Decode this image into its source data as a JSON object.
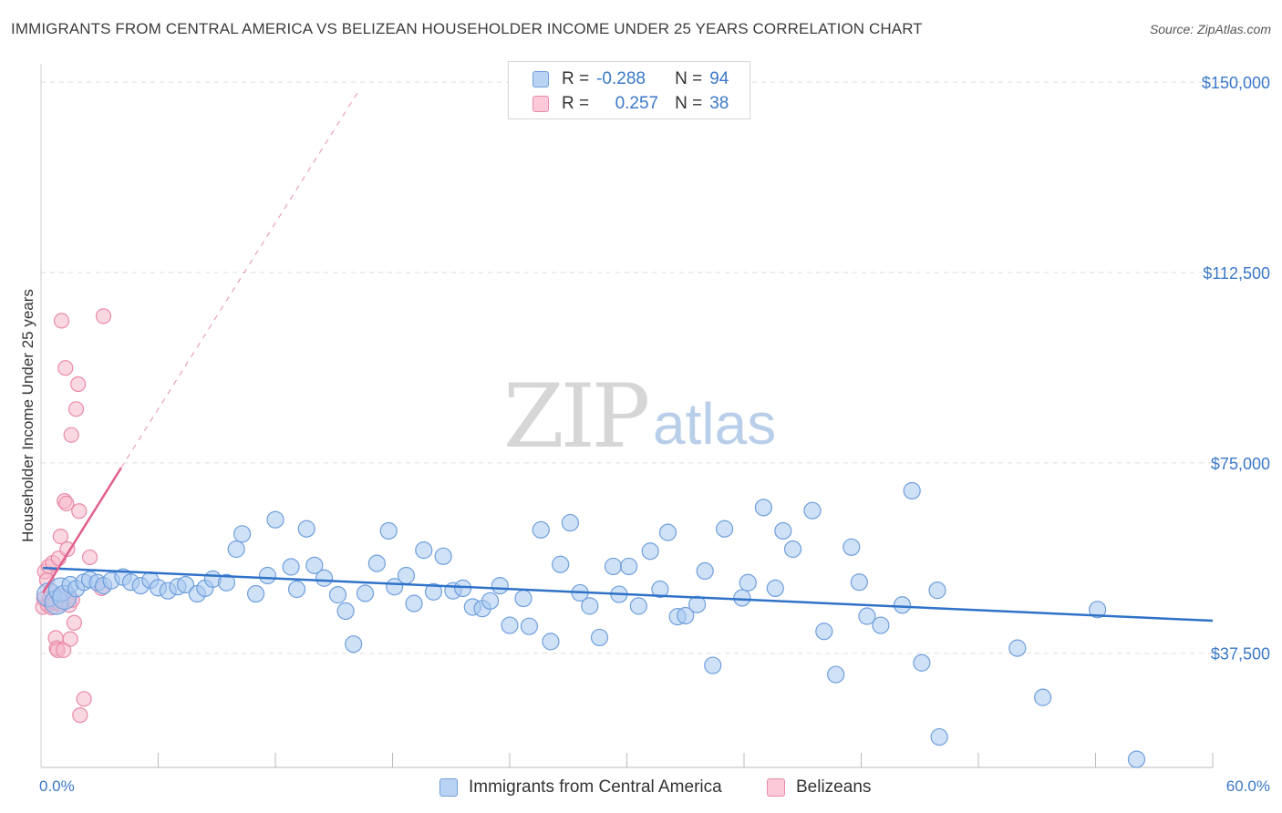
{
  "title": "IMMIGRANTS FROM CENTRAL AMERICA VS BELIZEAN HOUSEHOLDER INCOME UNDER 25 YEARS CORRELATION CHART",
  "source": "Source: ZipAtlas.com",
  "watermark": {
    "zip": "ZIP",
    "atlas": "atlas"
  },
  "colors": {
    "blue_fill": "#a8c8f0",
    "blue_stroke": "#6f9fdc",
    "blue_line": "#2f72c8",
    "pink_fill": "#f6b8cb",
    "pink_stroke": "#e88aa8",
    "pink_line": "#e0608a",
    "axis_text": "#3b78c8",
    "grid": "#dddddd"
  },
  "legend": {
    "rows": [
      {
        "r_label": "R =",
        "r_value": "-0.288",
        "n_label": "N =",
        "n_value": "94"
      },
      {
        "r_label": "R =",
        "r_value": "0.257",
        "n_label": "N =",
        "n_value": "38"
      }
    ]
  },
  "bottom_legend": {
    "series1": "Immigrants from Central America",
    "series2": "Belizeans"
  },
  "chart_data": {
    "type": "scatter",
    "title": "IMMIGRANTS FROM CENTRAL AMERICA VS BELIZEAN HOUSEHOLDER INCOME UNDER 25 YEARS CORRELATION CHART",
    "xlabel": "",
    "ylabel": "Householder Income Under 25 years",
    "xlim": [
      0,
      60
    ],
    "ylim": [
      15000,
      152000
    ],
    "x_tick_labels": [
      "0.0%",
      "60.0%"
    ],
    "y_ticks": [
      37500,
      75000,
      112500,
      150000
    ],
    "y_tick_labels": [
      "$37,500",
      "$75,000",
      "$112,500",
      "$150,000"
    ],
    "series": [
      {
        "name": "Immigrants from Central America",
        "r": -0.288,
        "n": 94,
        "trend": {
          "x": [
            0.1,
            60
          ],
          "y": [
            54300,
            43900
          ]
        },
        "points": [
          {
            "x": 0.4,
            "y": 49000
          },
          {
            "x": 0.8,
            "y": 47500
          },
          {
            "x": 1.0,
            "y": 50000
          },
          {
            "x": 1.2,
            "y": 48500
          },
          {
            "x": 1.5,
            "y": 51000
          },
          {
            "x": 1.8,
            "y": 50200
          },
          {
            "x": 2.2,
            "y": 51500
          },
          {
            "x": 2.5,
            "y": 52000
          },
          {
            "x": 2.9,
            "y": 51400
          },
          {
            "x": 3.2,
            "y": 50800
          },
          {
            "x": 3.6,
            "y": 51800
          },
          {
            "x": 4.2,
            "y": 52500
          },
          {
            "x": 4.6,
            "y": 51500
          },
          {
            "x": 5.1,
            "y": 50800
          },
          {
            "x": 5.6,
            "y": 51900
          },
          {
            "x": 6.0,
            "y": 50400
          },
          {
            "x": 6.5,
            "y": 49800
          },
          {
            "x": 7.0,
            "y": 50600
          },
          {
            "x": 7.4,
            "y": 51000
          },
          {
            "x": 8.0,
            "y": 49200
          },
          {
            "x": 8.4,
            "y": 50300
          },
          {
            "x": 8.8,
            "y": 52100
          },
          {
            "x": 9.5,
            "y": 51400
          },
          {
            "x": 10.0,
            "y": 58000
          },
          {
            "x": 10.3,
            "y": 61000
          },
          {
            "x": 11.0,
            "y": 49200
          },
          {
            "x": 11.6,
            "y": 52800
          },
          {
            "x": 12.0,
            "y": 63800
          },
          {
            "x": 12.8,
            "y": 54500
          },
          {
            "x": 13.1,
            "y": 50100
          },
          {
            "x": 13.6,
            "y": 62000
          },
          {
            "x": 14.0,
            "y": 54800
          },
          {
            "x": 14.5,
            "y": 52300
          },
          {
            "x": 15.2,
            "y": 49000
          },
          {
            "x": 15.6,
            "y": 45800
          },
          {
            "x": 16.0,
            "y": 39300
          },
          {
            "x": 16.6,
            "y": 49300
          },
          {
            "x": 17.2,
            "y": 55200
          },
          {
            "x": 17.8,
            "y": 61600
          },
          {
            "x": 18.1,
            "y": 50600
          },
          {
            "x": 18.7,
            "y": 52800
          },
          {
            "x": 19.1,
            "y": 47300
          },
          {
            "x": 19.6,
            "y": 57800
          },
          {
            "x": 20.1,
            "y": 49600
          },
          {
            "x": 20.6,
            "y": 56600
          },
          {
            "x": 21.1,
            "y": 49800
          },
          {
            "x": 21.6,
            "y": 50300
          },
          {
            "x": 22.1,
            "y": 46600
          },
          {
            "x": 22.6,
            "y": 46300
          },
          {
            "x": 23.0,
            "y": 47800
          },
          {
            "x": 23.5,
            "y": 50800
          },
          {
            "x": 24.0,
            "y": 43000
          },
          {
            "x": 24.7,
            "y": 48300
          },
          {
            "x": 25.0,
            "y": 42800
          },
          {
            "x": 25.6,
            "y": 61800
          },
          {
            "x": 26.1,
            "y": 39800
          },
          {
            "x": 26.6,
            "y": 55000
          },
          {
            "x": 27.1,
            "y": 63200
          },
          {
            "x": 27.6,
            "y": 49400
          },
          {
            "x": 28.1,
            "y": 46800
          },
          {
            "x": 28.6,
            "y": 40600
          },
          {
            "x": 29.3,
            "y": 54600
          },
          {
            "x": 29.6,
            "y": 49100
          },
          {
            "x": 30.1,
            "y": 54600
          },
          {
            "x": 30.6,
            "y": 46800
          },
          {
            "x": 31.2,
            "y": 57600
          },
          {
            "x": 31.7,
            "y": 50100
          },
          {
            "x": 32.1,
            "y": 61300
          },
          {
            "x": 32.6,
            "y": 44700
          },
          {
            "x": 33.0,
            "y": 44900
          },
          {
            "x": 33.6,
            "y": 47100
          },
          {
            "x": 34.0,
            "y": 53700
          },
          {
            "x": 34.4,
            "y": 35100
          },
          {
            "x": 35.0,
            "y": 62000
          },
          {
            "x": 35.9,
            "y": 48400
          },
          {
            "x": 36.2,
            "y": 51400
          },
          {
            "x": 37.0,
            "y": 66200
          },
          {
            "x": 37.6,
            "y": 50300
          },
          {
            "x": 38.0,
            "y": 61600
          },
          {
            "x": 38.5,
            "y": 58000
          },
          {
            "x": 39.5,
            "y": 65600
          },
          {
            "x": 40.1,
            "y": 41800
          },
          {
            "x": 40.7,
            "y": 33300
          },
          {
            "x": 41.5,
            "y": 58400
          },
          {
            "x": 41.9,
            "y": 51500
          },
          {
            "x": 42.3,
            "y": 44800
          },
          {
            "x": 43.0,
            "y": 43000
          },
          {
            "x": 44.1,
            "y": 47000
          },
          {
            "x": 44.6,
            "y": 69500
          },
          {
            "x": 45.1,
            "y": 35600
          },
          {
            "x": 45.9,
            "y": 49900
          },
          {
            "x": 46.0,
            "y": 21000
          },
          {
            "x": 50.0,
            "y": 38500
          },
          {
            "x": 51.3,
            "y": 28800
          },
          {
            "x": 54.1,
            "y": 46100
          },
          {
            "x": 56.1,
            "y": 16600
          }
        ]
      },
      {
        "name": "Belizeans",
        "r": 0.257,
        "n": 38,
        "trend": {
          "x": [
            0.1,
            4.1
          ],
          "y": [
            49400,
            74000
          ]
        },
        "trend_dashed": {
          "x": [
            4.1,
            16.3
          ],
          "y": [
            74000,
            148500
          ]
        },
        "points": [
          {
            "x": 0.1,
            "y": 46600
          },
          {
            "x": 0.15,
            "y": 48200
          },
          {
            "x": 0.2,
            "y": 53600
          },
          {
            "x": 0.3,
            "y": 51900
          },
          {
            "x": 0.35,
            "y": 47000
          },
          {
            "x": 0.4,
            "y": 54600
          },
          {
            "x": 0.45,
            "y": 48300
          },
          {
            "x": 0.5,
            "y": 49700
          },
          {
            "x": 0.55,
            "y": 46500
          },
          {
            "x": 0.6,
            "y": 55300
          },
          {
            "x": 0.7,
            "y": 47400
          },
          {
            "x": 0.75,
            "y": 40500
          },
          {
            "x": 0.8,
            "y": 38500
          },
          {
            "x": 0.85,
            "y": 38100
          },
          {
            "x": 0.9,
            "y": 56200
          },
          {
            "x": 0.95,
            "y": 47200
          },
          {
            "x": 1.0,
            "y": 60500
          },
          {
            "x": 1.05,
            "y": 103000
          },
          {
            "x": 1.1,
            "y": 48800
          },
          {
            "x": 1.15,
            "y": 38100
          },
          {
            "x": 1.2,
            "y": 67500
          },
          {
            "x": 1.25,
            "y": 93700
          },
          {
            "x": 1.3,
            "y": 67000
          },
          {
            "x": 1.35,
            "y": 58000
          },
          {
            "x": 1.4,
            "y": 48600
          },
          {
            "x": 1.45,
            "y": 47000
          },
          {
            "x": 1.5,
            "y": 40300
          },
          {
            "x": 1.55,
            "y": 80500
          },
          {
            "x": 1.6,
            "y": 48000
          },
          {
            "x": 1.7,
            "y": 43500
          },
          {
            "x": 1.8,
            "y": 85600
          },
          {
            "x": 1.9,
            "y": 90500
          },
          {
            "x": 1.95,
            "y": 65500
          },
          {
            "x": 2.0,
            "y": 25300
          },
          {
            "x": 2.2,
            "y": 28500
          },
          {
            "x": 2.5,
            "y": 56400
          },
          {
            "x": 3.1,
            "y": 50300
          },
          {
            "x": 3.2,
            "y": 103900
          }
        ]
      }
    ]
  }
}
